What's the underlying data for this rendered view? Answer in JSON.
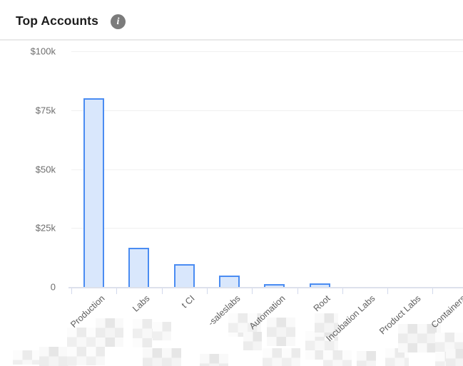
{
  "header": {
    "title": "Top Accounts",
    "info_icon": "info-icon",
    "info_glyph": "i"
  },
  "colors": {
    "bar_fill": "#d9e7fc",
    "bar_border": "#4a8cf2",
    "gridline": "#f0f0f0",
    "axis": "#dde1ec",
    "y_label_text": "#6d6d6d",
    "x_label_text": "#5d5d5d",
    "title_text": "#1d1d1d",
    "info_badge_bg": "#7b7b7b",
    "divider": "#e9e9e9",
    "redaction_mosaic": "#ededed"
  },
  "chart_data": {
    "type": "bar",
    "title": "Top Accounts",
    "categories": [
      "Production",
      "Labs",
      "t CI",
      "-saleslabs",
      "Automation",
      "Root",
      "Incubation Labs",
      "Product Labs",
      "Containers"
    ],
    "values": [
      80000,
      16500,
      9700,
      4800,
      1200,
      1500,
      0,
      0,
      0
    ],
    "redacted_prefix": [
      true,
      true,
      true,
      true,
      false,
      false,
      false,
      false,
      false
    ],
    "y_tick_labels": [
      "$100k",
      "$75k",
      "$50k",
      "$25k",
      "0"
    ],
    "y_tick_values": [
      100000,
      75000,
      50000,
      25000,
      0
    ],
    "ylim": [
      0,
      100000
    ],
    "xlabel": "",
    "ylabel": "",
    "grid": "horizontal-only",
    "legend": "none",
    "x_label_rotation_deg": -43
  }
}
